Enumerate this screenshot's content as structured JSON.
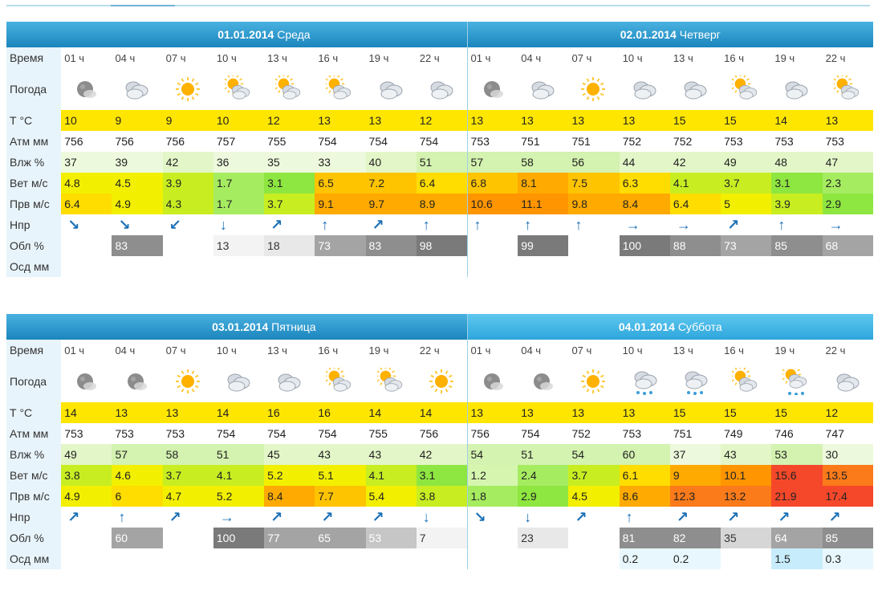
{
  "labels": {
    "time": "Время",
    "weather": "Погода",
    "temp": "Т °C",
    "pressure": "Атм мм",
    "humidity": "Влж %",
    "wind": "Вет м/с",
    "gust": "Прв м/с",
    "dir": "Нпр",
    "cloud": "Обл %",
    "precip": "Осд мм"
  },
  "times": [
    "01 ч",
    "04 ч",
    "07 ч",
    "10 ч",
    "13 ч",
    "16 ч",
    "19 ч",
    "22 ч"
  ],
  "blocks": [
    {
      "days": [
        {
          "date": "01.01.2014",
          "weekday": "Среда",
          "header_style": "dark",
          "icons": [
            "moon-cloud-icon",
            "cloud-icon",
            "sun-icon",
            "sun-cloud-icon",
            "sun-cloud-icon",
            "sun-cloud-icon",
            "cloud-icon",
            "cloud-icon"
          ],
          "temp": [
            "10",
            "9",
            "9",
            "10",
            "12",
            "13",
            "13",
            "12"
          ],
          "pressure": [
            "756",
            "756",
            "756",
            "757",
            "755",
            "754",
            "754",
            "754"
          ],
          "humidity": [
            "37",
            "39",
            "42",
            "36",
            "35",
            "33",
            "40",
            "51"
          ],
          "wind": [
            "4.8",
            "4.5",
            "3.9",
            "1.7",
            "3.1",
            "6.5",
            "7.2",
            "6.4"
          ],
          "gust": [
            "6.4",
            "4.9",
            "4.3",
            "1.7",
            "3.7",
            "9.1",
            "9.7",
            "8.9"
          ],
          "dir": [
            "↘",
            "↘",
            "↙",
            "↓",
            "↗",
            "↑",
            "↗",
            "↑"
          ],
          "cloud": [
            "",
            "83",
            "",
            "13",
            "18",
            "73",
            "83",
            "98"
          ],
          "precip": [
            "",
            "",
            "",
            "",
            "",
            "",
            "",
            ""
          ]
        },
        {
          "date": "02.01.2014",
          "weekday": "Четверг",
          "header_style": "dark",
          "icons": [
            "moon-cloud-icon",
            "cloud-icon",
            "sun-icon",
            "cloud-icon",
            "cloud-icon",
            "sun-cloud-icon",
            "cloud-icon",
            "sun-cloud-icon"
          ],
          "temp": [
            "13",
            "13",
            "13",
            "13",
            "15",
            "15",
            "14",
            "13"
          ],
          "pressure": [
            "753",
            "751",
            "751",
            "752",
            "752",
            "753",
            "753",
            "753"
          ],
          "humidity": [
            "57",
            "58",
            "56",
            "44",
            "42",
            "49",
            "48",
            "47"
          ],
          "wind": [
            "6.8",
            "8.1",
            "7.5",
            "6.3",
            "4.1",
            "3.7",
            "3.1",
            "2.3"
          ],
          "gust": [
            "10.6",
            "11.1",
            "9.8",
            "8.4",
            "6.4",
            "5",
            "3.9",
            "2.9"
          ],
          "dir": [
            "↑",
            "↑",
            "↑",
            "→",
            "→",
            "↗",
            "↑",
            "→"
          ],
          "cloud": [
            "",
            "99",
            "",
            "100",
            "88",
            "73",
            "85",
            "68"
          ],
          "precip": [
            "",
            "",
            "",
            "",
            "",
            "",
            "",
            ""
          ]
        }
      ]
    },
    {
      "days": [
        {
          "date": "03.01.2014",
          "weekday": "Пятница",
          "header_style": "dark",
          "icons": [
            "moon-cloud-icon",
            "moon-cloud-icon",
            "sun-icon",
            "cloud-icon",
            "cloud-icon",
            "sun-cloud-icon",
            "sun-cloud-icon",
            "sun-icon"
          ],
          "temp": [
            "14",
            "13",
            "13",
            "14",
            "16",
            "16",
            "14",
            "14"
          ],
          "pressure": [
            "753",
            "753",
            "753",
            "754",
            "754",
            "754",
            "755",
            "756"
          ],
          "humidity": [
            "49",
            "57",
            "58",
            "51",
            "45",
            "43",
            "43",
            "42"
          ],
          "wind": [
            "3.8",
            "4.6",
            "3.7",
            "4.1",
            "5.2",
            "5.1",
            "4.1",
            "3.1"
          ],
          "gust": [
            "4.9",
            "6",
            "4.7",
            "5.2",
            "8.4",
            "7.7",
            "5.4",
            "3.8"
          ],
          "dir": [
            "↗",
            "↑",
            "↗",
            "→",
            "↗",
            "↗",
            "↗",
            "↓"
          ],
          "cloud": [
            "",
            "60",
            "",
            "100",
            "77",
            "65",
            "53",
            "7"
          ],
          "precip": [
            "",
            "",
            "",
            "",
            "",
            "",
            "",
            ""
          ]
        },
        {
          "date": "04.01.2014",
          "weekday": "Суббота",
          "header_style": "lite",
          "icons": [
            "moon-cloud-icon",
            "moon-cloud-icon",
            "sun-icon",
            "cloud-rain-icon",
            "cloud-rain-icon",
            "sun-cloud-icon",
            "sun-cloud-rain-icon",
            "cloud-icon"
          ],
          "temp": [
            "13",
            "13",
            "13",
            "13",
            "15",
            "15",
            "15",
            "12"
          ],
          "pressure": [
            "756",
            "754",
            "752",
            "753",
            "751",
            "749",
            "746",
            "747"
          ],
          "humidity": [
            "54",
            "51",
            "54",
            "60",
            "37",
            "43",
            "53",
            "30"
          ],
          "wind": [
            "1.2",
            "2.4",
            "3.7",
            "6.1",
            "9",
            "10.1",
            "15.6",
            "13.5"
          ],
          "gust": [
            "1.8",
            "2.9",
            "4.5",
            "8.6",
            "12.3",
            "13.2",
            "21.9",
            "17.4"
          ],
          "dir": [
            "↘",
            "↓",
            "↗",
            "↑",
            "↗",
            "↗",
            "↗",
            "↗"
          ],
          "cloud": [
            "",
            "23",
            "",
            "81",
            "82",
            "35",
            "64",
            "85"
          ],
          "precip": [
            "",
            "",
            "",
            "0.2",
            "0.2",
            "",
            "1.5",
            "0.3"
          ]
        }
      ]
    }
  ]
}
